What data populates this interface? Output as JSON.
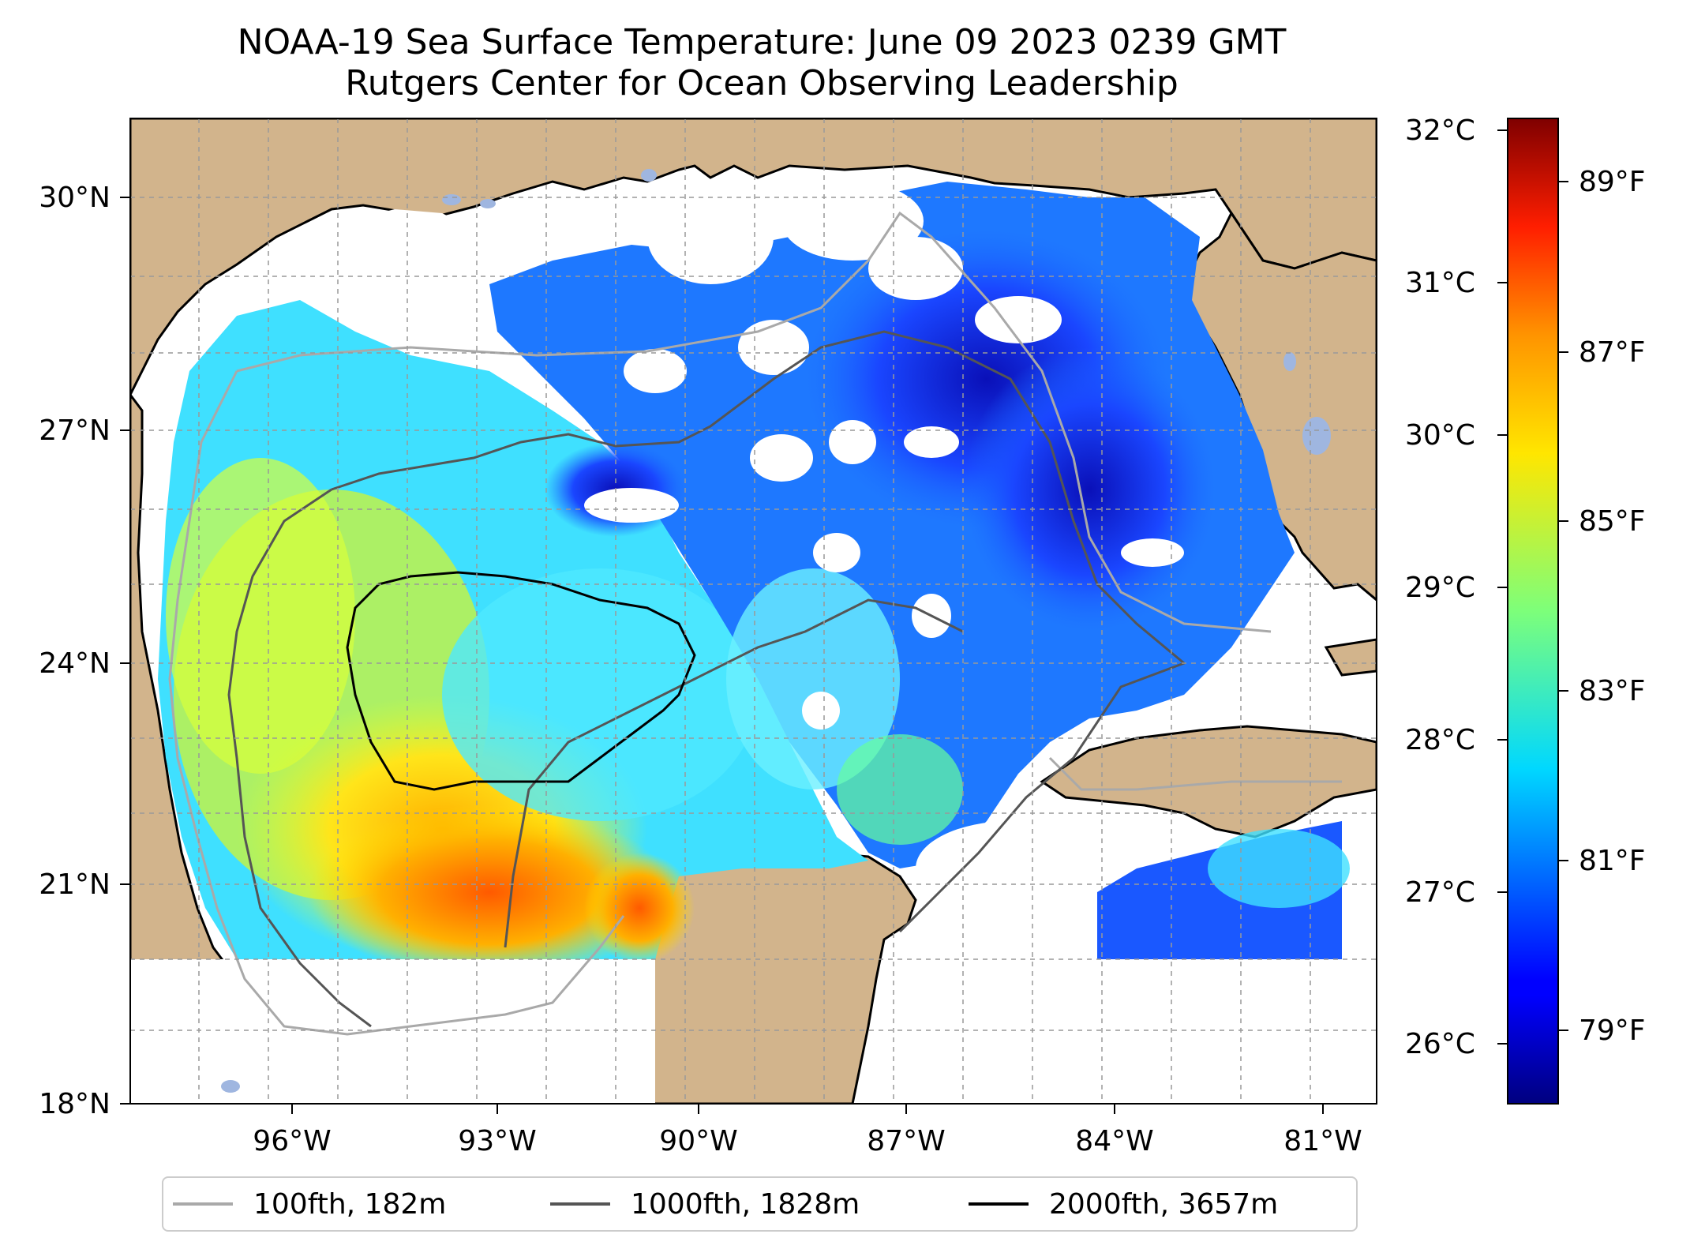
{
  "title": {
    "line1": "NOAA-19 Sea Surface Temperature: June 09 2023 0239 GMT",
    "line2": "Rutgers Center for Ocean Observing Leadership"
  },
  "map": {
    "lat_ticks": [
      "30°N",
      "27°N",
      "24°N",
      "21°N",
      "18°N"
    ],
    "lon_ticks": [
      "96°W",
      "93°W",
      "90°W",
      "87°W",
      "84°W",
      "81°W"
    ],
    "land_color": "#d2b48c",
    "lake_color": "#9fb6e0",
    "cloud_color": "#ffffff",
    "grid": "dashed"
  },
  "colorbar": {
    "colormap": "jet",
    "celsius_ticks": [
      "32°C",
      "31°C",
      "30°C",
      "29°C",
      "28°C",
      "27°C",
      "26°C"
    ],
    "fahrenheit_ticks": [
      "89°F",
      "87°F",
      "85°F",
      "83°F",
      "81°F",
      "79°F"
    ]
  },
  "legend": {
    "items": [
      {
        "label": "100fth, 182m",
        "color": "#a9a9a9"
      },
      {
        "label": "1000fth, 1828m",
        "color": "#555555"
      },
      {
        "label": "2000fth, 3657m",
        "color": "#000000"
      }
    ]
  }
}
